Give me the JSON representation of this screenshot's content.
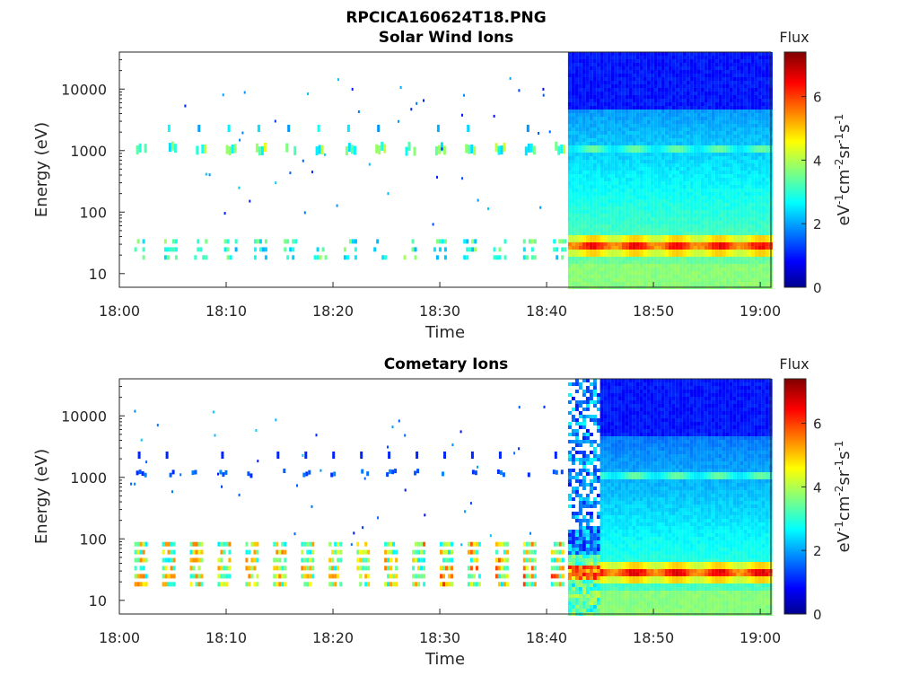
{
  "figure_title": "RPCICA160624T18.PNG",
  "colorbar": {
    "label": "Flux",
    "unit_base": "eV",
    "unit_exp1": "-1",
    "unit_mid": "cm",
    "unit_exp2": "-2",
    "unit_mid2": "sr",
    "unit_exp3": "-1",
    "unit_end": "s",
    "unit_exp4": "-1",
    "ticks": [
      "0",
      "2",
      "4",
      "6"
    ],
    "range": [
      0,
      7.4
    ],
    "colormap": "jet"
  },
  "chart_data": [
    {
      "type": "heatmap",
      "title": "Solar Wind Ions",
      "xlabel": "Time",
      "ylabel": "Energy (eV)",
      "yscale": "log",
      "ylim": [
        6,
        40000
      ],
      "xlim": [
        "18:00",
        "19:01"
      ],
      "xticks": [
        "18:00",
        "18:10",
        "18:20",
        "18:30",
        "18:40",
        "18:50",
        "19:00"
      ],
      "yticks": [
        "10",
        "100",
        "1000",
        "10000"
      ],
      "sparse_until": "18:42",
      "dense_from": "18:42",
      "bands_eV": [
        25,
        1150,
        2300
      ],
      "high_flux_band_eV": 30,
      "peak_flux": 6.3
    },
    {
      "type": "heatmap",
      "title": "Cometary Ions",
      "xlabel": "Time",
      "ylabel": "Energy (eV)",
      "yscale": "log",
      "ylim": [
        6,
        40000
      ],
      "xlim": [
        "18:00",
        "19:01"
      ],
      "xticks": [
        "18:00",
        "18:10",
        "18:20",
        "18:30",
        "18:40",
        "18:50",
        "19:00"
      ],
      "yticks": [
        "10",
        "100",
        "1000",
        "10000"
      ],
      "sparse_until": "18:42",
      "dense_from": "18:45",
      "bands_eV": [
        25,
        1150,
        2300
      ],
      "high_flux_band_eV": 30,
      "peak_flux": 6.5
    }
  ]
}
